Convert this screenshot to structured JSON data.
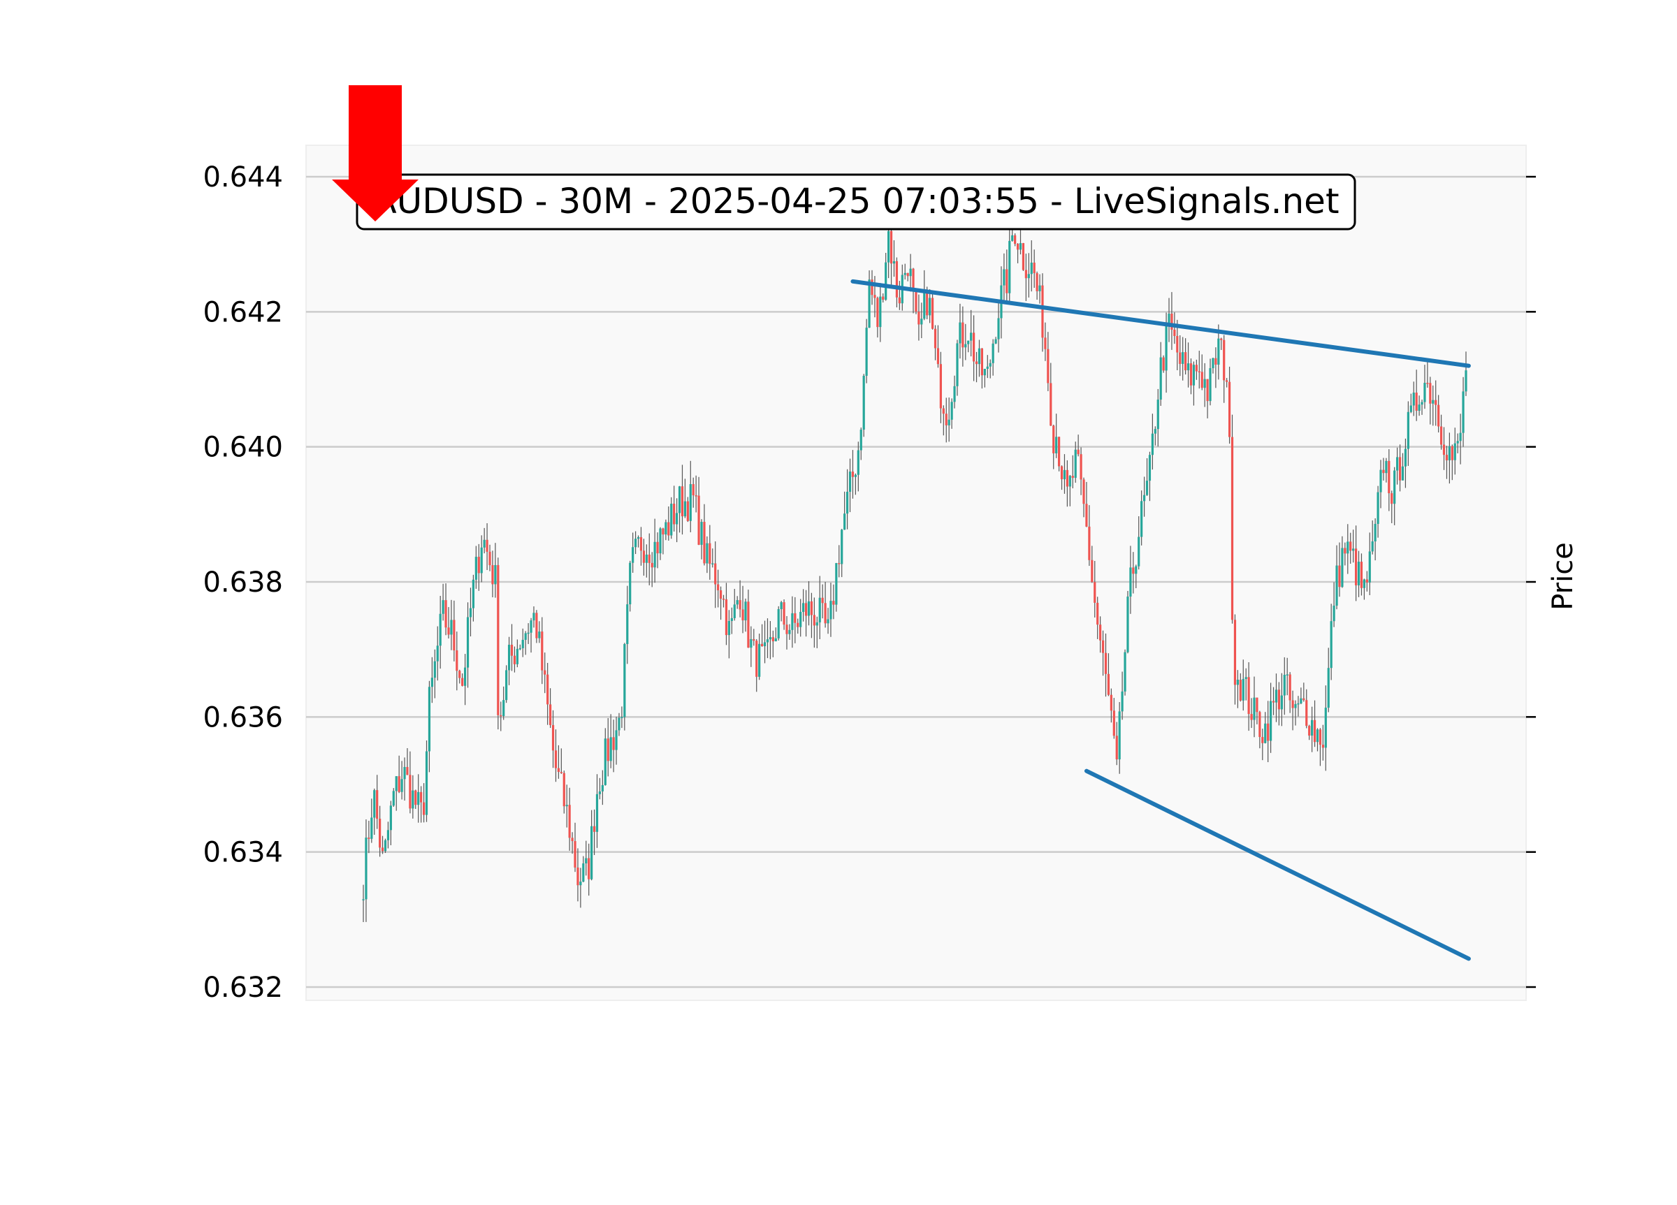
{
  "chart_data": {
    "type": "candlestick",
    "title": "AUDUSD - 30M - 2025-04-25 07:03:55 - LiveSignals.net",
    "ylabel": "Price",
    "xlabel": "",
    "ylim": [
      0.6318,
      0.6446
    ],
    "yticks": [
      "0.632",
      "0.634",
      "0.636",
      "0.638",
      "0.640",
      "0.642",
      "0.644"
    ],
    "grid": "horizontal",
    "background": "#f9f9f9",
    "up_color": "#26a69a",
    "down_color": "#ef5350",
    "wick_color": "#555555",
    "candle_count": 210,
    "close_anchors": [
      [
        0,
        0.6336
      ],
      [
        3,
        0.6349
      ],
      [
        6,
        0.6338
      ],
      [
        9,
        0.6348
      ],
      [
        12,
        0.6352
      ],
      [
        15,
        0.6348
      ],
      [
        18,
        0.6345
      ],
      [
        20,
        0.6362
      ],
      [
        24,
        0.6375
      ],
      [
        27,
        0.6372
      ],
      [
        30,
        0.6365
      ],
      [
        33,
        0.6378
      ],
      [
        36,
        0.6387
      ],
      [
        40,
        0.638
      ],
      [
        41,
        0.6359
      ],
      [
        44,
        0.6368
      ],
      [
        48,
        0.6372
      ],
      [
        52,
        0.6375
      ],
      [
        55,
        0.6364
      ],
      [
        58,
        0.6353
      ],
      [
        62,
        0.6345
      ],
      [
        65,
        0.6336
      ],
      [
        68,
        0.6337
      ],
      [
        71,
        0.635
      ],
      [
        74,
        0.6355
      ],
      [
        78,
        0.636
      ],
      [
        81,
        0.6382
      ],
      [
        84,
        0.6386
      ],
      [
        88,
        0.6385
      ],
      [
        92,
        0.6388
      ],
      [
        96,
        0.6392
      ],
      [
        100,
        0.6392
      ],
      [
        104,
        0.6383
      ],
      [
        108,
        0.638
      ],
      [
        111,
        0.6372
      ],
      [
        114,
        0.6379
      ],
      [
        118,
        0.6369
      ],
      [
        122,
        0.6368
      ],
      [
        126,
        0.6375
      ],
      [
        130,
        0.6373
      ],
      [
        134,
        0.6376
      ],
      [
        138,
        0.6375
      ],
      [
        141,
        0.6372
      ],
      [
        143,
        0.6381
      ],
      [
        145,
        0.6388
      ],
      [
        148,
        0.6395
      ],
      [
        150,
        0.64
      ],
      [
        152,
        0.6412
      ],
      [
        153,
        0.6425
      ],
      [
        156,
        0.6418
      ],
      [
        159,
        0.6432
      ],
      [
        162,
        0.6422
      ],
      [
        165,
        0.6428
      ],
      [
        168,
        0.6415
      ],
      [
        171,
        0.6423
      ],
      [
        174,
        0.641
      ],
      [
        177,
        0.6405
      ],
      [
        180,
        0.6415
      ],
      [
        183,
        0.6418
      ],
      [
        186,
        0.6412
      ],
      [
        189,
        0.641
      ],
      [
        192,
        0.642
      ],
      [
        195,
        0.6425
      ],
      [
        197,
        0.6433
      ],
      [
        200,
        0.6428
      ],
      [
        203,
        0.6426
      ],
      [
        206,
        0.6418
      ],
      [
        209,
        0.6402
      ]
    ],
    "close_anchors_b": [
      [
        0,
        0.6402
      ],
      [
        3,
        0.6392
      ],
      [
        6,
        0.6398
      ],
      [
        9,
        0.6388
      ],
      [
        12,
        0.6375
      ],
      [
        15,
        0.6365
      ],
      [
        17,
        0.6358
      ],
      [
        18,
        0.635
      ],
      [
        20,
        0.6365
      ],
      [
        22,
        0.6378
      ],
      [
        25,
        0.6388
      ],
      [
        28,
        0.6395
      ],
      [
        31,
        0.641
      ],
      [
        34,
        0.6418
      ],
      [
        37,
        0.6413
      ],
      [
        40,
        0.641
      ],
      [
        43,
        0.6412
      ],
      [
        46,
        0.6408
      ],
      [
        49,
        0.6415
      ],
      [
        52,
        0.641
      ],
      [
        53,
        0.638
      ],
      [
        54,
        0.6367
      ],
      [
        57,
        0.6364
      ],
      [
        60,
        0.636
      ],
      [
        63,
        0.6358
      ],
      [
        66,
        0.6362
      ],
      [
        69,
        0.6365
      ],
      [
        72,
        0.636
      ],
      [
        75,
        0.6362
      ],
      [
        78,
        0.6358
      ],
      [
        81,
        0.6357
      ],
      [
        84,
        0.6378
      ],
      [
        87,
        0.6385
      ],
      [
        90,
        0.6383
      ],
      [
        93,
        0.6378
      ],
      [
        96,
        0.6385
      ],
      [
        99,
        0.6398
      ],
      [
        102,
        0.6393
      ],
      [
        105,
        0.64
      ],
      [
        108,
        0.6405
      ],
      [
        111,
        0.641
      ],
      [
        114,
        0.6408
      ],
      [
        117,
        0.6402
      ],
      [
        120,
        0.6398
      ],
      [
        122,
        0.64
      ],
      [
        124,
        0.6412
      ]
    ],
    "trendlines": [
      {
        "name": "resistance",
        "color": "#1f77b4",
        "from": [
          178,
          0.64245
        ],
        "to": [
          402,
          0.6412
        ]
      },
      {
        "name": "support",
        "color": "#1f77b4",
        "from": [
          263,
          0.6352
        ],
        "to": [
          402,
          0.63242
        ]
      }
    ],
    "signal": {
      "direction": "sell",
      "color": "#ff0000",
      "icon": "down-arrow-icon"
    }
  }
}
